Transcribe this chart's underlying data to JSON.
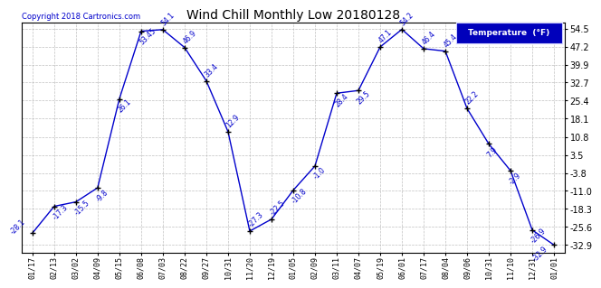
{
  "title": "Wind Chill Monthly Low 20180128",
  "copyright": "Copyright 2018 Cartronics.com",
  "legend_label": "Temperature  (°F)",
  "x_labels": [
    "01/17",
    "02/13",
    "03/02",
    "04/09",
    "05/15",
    "06/08",
    "07/03",
    "08/22",
    "09/27",
    "10/31",
    "11/20",
    "12/19",
    "01/05",
    "02/09",
    "03/11",
    "04/07",
    "05/19",
    "06/01",
    "07/17",
    "08/04",
    "09/06",
    "10/31",
    "11/10",
    "12/31",
    "01/01"
  ],
  "y_values": [
    -28.1,
    -17.3,
    -15.5,
    -9.8,
    26.1,
    53.45,
    54.1,
    46.9,
    33.4,
    12.9,
    -27.3,
    -22.5,
    -10.8,
    -1.0,
    28.4,
    29.5,
    47.1,
    54.2,
    46.4,
    45.4,
    22.2,
    7.9,
    -2.9,
    -26.9,
    -32.9
  ],
  "point_labels": [
    "-28.1",
    "-17.3",
    "-15.5",
    "-9.8",
    "26.1",
    "53.45",
    "54.1",
    "46.9",
    "33.4",
    "12.9",
    "-27.3",
    "-22.5",
    "-10.8",
    "-1.0",
    "28.4",
    "29.5",
    "47.1",
    "54.2",
    "46.4",
    "45.4",
    "22.2",
    "7.9",
    "-2.9",
    "-26.9",
    "-32.9"
  ],
  "yticks": [
    54.5,
    47.2,
    39.9,
    32.7,
    25.4,
    18.1,
    10.8,
    3.5,
    -3.8,
    -11.0,
    -18.3,
    -25.6,
    -32.9
  ],
  "line_color": "#0000cc",
  "marker_color": "#000000",
  "label_color": "#0000cc",
  "bg_color": "#ffffff",
  "grid_color": "#b0b0b0",
  "title_color": "#000000",
  "legend_bg": "#0000bb",
  "legend_fg": "#ffffff",
  "ylim_min": -36,
  "ylim_max": 57
}
